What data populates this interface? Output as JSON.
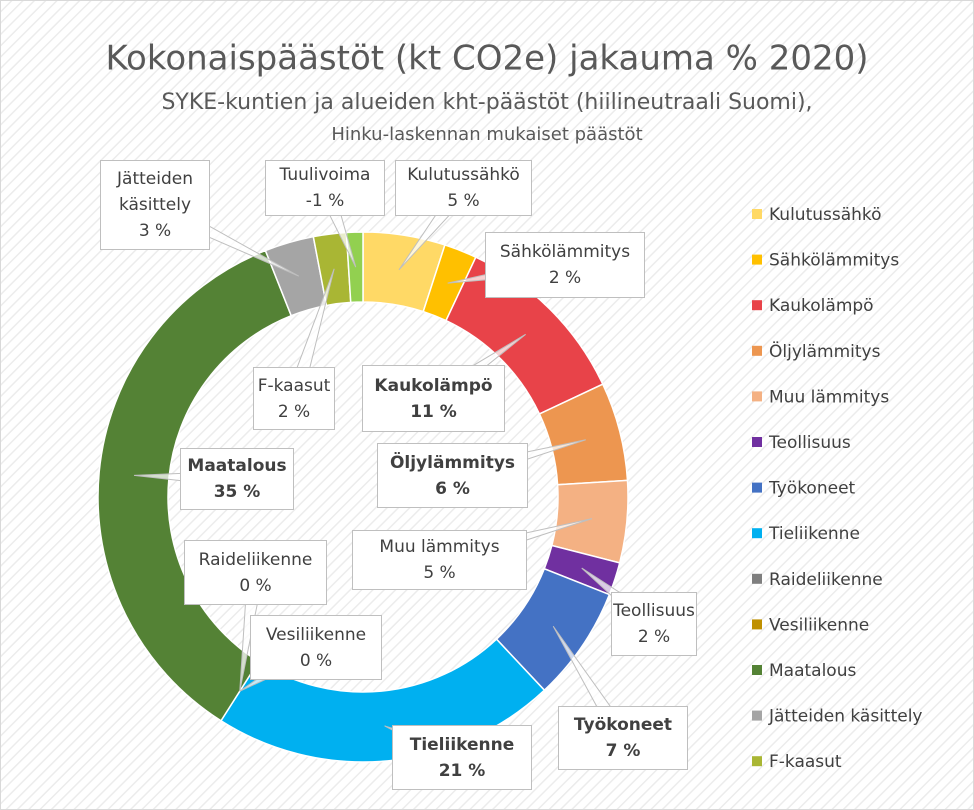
{
  "chart_data": {
    "type": "donut",
    "title": "Kokonaispäästöt (kt CO2e) jakauma % 2020)",
    "subtitle": [
      "SYKE-kuntien ja alueiden kht-päästöt (hiilineutraali Suomi),",
      "Hinku-laskennan mukaiset päästöt"
    ],
    "categories": [
      "Kulutussähkö",
      "Sähkölämmitys",
      "Kaukolämpö",
      "Öljylämmitys",
      "Muu lämmitys",
      "Teollisuus",
      "Työkoneet",
      "Tieliikenne",
      "Raideliikenne",
      "Vesiliikenne",
      "Maatalous",
      "Jätteiden käsittely",
      "F-kaasut",
      "Tuulivoima"
    ],
    "values": [
      5,
      2,
      11,
      6,
      5,
      2,
      7,
      21,
      0,
      0,
      35,
      3,
      2,
      -1
    ],
    "value_labels": [
      "5 %",
      "2 %",
      "11 %",
      "6 %",
      "5 %",
      "2 %",
      "7 %",
      "21 %",
      "0 %",
      "0 %",
      "35 %",
      "3 %",
      "2 %",
      "-1 %"
    ],
    "colors": [
      "#ffd966",
      "#ffc000",
      "#e84349",
      "#ed9650",
      "#f4b183",
      "#7030a0",
      "#4472c4",
      "#00b0f0",
      "#7f7f7f",
      "#bf9000",
      "#548235",
      "#a5a5a5",
      "#a9b634",
      "#92d050"
    ],
    "show_in_legend": [
      true,
      true,
      true,
      true,
      true,
      true,
      true,
      true,
      true,
      true,
      true,
      true,
      true,
      false
    ],
    "bold_labels": [
      false,
      false,
      true,
      true,
      false,
      false,
      true,
      true,
      false,
      false,
      true,
      false,
      false,
      false
    ],
    "legend_position": "right"
  }
}
